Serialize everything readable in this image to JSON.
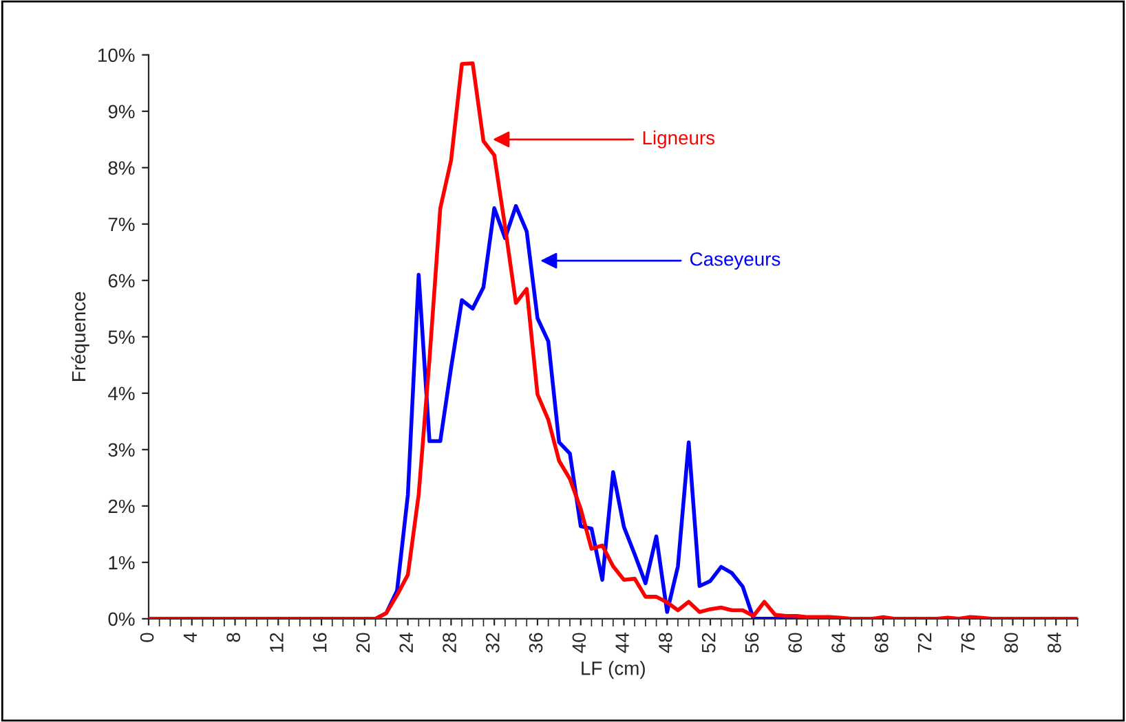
{
  "chart_data": {
    "type": "line",
    "xlabel": "LF (cm)",
    "ylabel": "Fréquence",
    "x": [
      0,
      1,
      2,
      3,
      4,
      5,
      6,
      7,
      8,
      9,
      10,
      11,
      12,
      13,
      14,
      15,
      16,
      17,
      18,
      19,
      20,
      21,
      22,
      23,
      24,
      25,
      26,
      27,
      28,
      29,
      30,
      31,
      32,
      33,
      34,
      35,
      36,
      37,
      38,
      39,
      40,
      41,
      42,
      43,
      44,
      45,
      46,
      47,
      48,
      49,
      50,
      51,
      52,
      53,
      54,
      55,
      56,
      57,
      58,
      59,
      60,
      61,
      62,
      63,
      64,
      65,
      66,
      67,
      68,
      69,
      70,
      71,
      72,
      73,
      74,
      75,
      76,
      77,
      78,
      79,
      80,
      81,
      82,
      83,
      84,
      85,
      86
    ],
    "series": [
      {
        "color": "#ff0000",
        "values": [
          0,
          0,
          0,
          0,
          0,
          0,
          0,
          0,
          0,
          0,
          0,
          0,
          0,
          0,
          0,
          0,
          0,
          0,
          0,
          0,
          0,
          0,
          0.1,
          0.42,
          0.78,
          2.2,
          4.6,
          7.28,
          8.13,
          9.84,
          9.85,
          8.47,
          8.22,
          6.95,
          5.6,
          5.85,
          3.98,
          3.53,
          2.8,
          2.48,
          1.95,
          1.24,
          1.3,
          0.93,
          0.69,
          0.71,
          0.39,
          0.39,
          0.29,
          0.15,
          0.3,
          0.12,
          0.17,
          0.2,
          0.15,
          0.15,
          0.05,
          0.3,
          0.07,
          0.05,
          0.05,
          0.03,
          0.03,
          0.03,
          0.02,
          0,
          0,
          0,
          0.03,
          0,
          0,
          0,
          0,
          0,
          0.02,
          0,
          0.03,
          0.02,
          0,
          0,
          0,
          0,
          0,
          0,
          0,
          0,
          0
        ]
      },
      {
        "color": "#0000ff",
        "values": [
          null,
          null,
          null,
          null,
          null,
          null,
          null,
          null,
          null,
          null,
          null,
          null,
          null,
          null,
          null,
          null,
          null,
          null,
          null,
          null,
          null,
          0,
          0.1,
          0.5,
          2.2,
          6.1,
          3.15,
          3.15,
          4.45,
          5.65,
          5.5,
          5.88,
          7.28,
          6.75,
          7.32,
          6.87,
          5.33,
          4.92,
          3.13,
          2.93,
          1.64,
          1.6,
          0.69,
          2.6,
          1.63,
          1.14,
          0.63,
          1.46,
          0.12,
          0.93,
          3.13,
          0.58,
          0.67,
          0.92,
          0.81,
          0.57,
          0,
          0,
          0,
          0,
          0,
          null,
          null,
          null,
          null,
          null,
          null,
          null,
          null,
          null,
          null,
          null,
          null,
          null,
          null,
          null,
          null,
          null,
          null,
          null,
          null,
          null,
          null,
          null,
          null,
          null,
          null
        ]
      }
    ],
    "xlim": [
      0,
      86
    ],
    "xticks": [
      0,
      4,
      8,
      12,
      16,
      20,
      24,
      28,
      32,
      36,
      40,
      44,
      48,
      52,
      56,
      60,
      64,
      68,
      72,
      76,
      80,
      84
    ],
    "ylim": [
      0,
      10
    ],
    "yticks": [
      {
        "value": 0,
        "label": "0%"
      },
      {
        "value": 1,
        "label": "1%"
      },
      {
        "value": 2,
        "label": "2%"
      },
      {
        "value": 3,
        "label": "3%"
      },
      {
        "value": 4,
        "label": "4%"
      },
      {
        "value": 5,
        "label": "5%"
      },
      {
        "value": 6,
        "label": "6%"
      },
      {
        "value": 7,
        "label": "7%"
      },
      {
        "value": 8,
        "label": "8%"
      },
      {
        "value": 9,
        "label": "9%"
      },
      {
        "value": 10,
        "label": "10%"
      }
    ],
    "annotations": [
      {
        "text": "Ligneurs",
        "x": 31.5,
        "y": 8.5
      },
      {
        "text": "Caseyeurs",
        "x": 35.9,
        "y": 6.35
      }
    ],
    "grid": false,
    "legend": false,
    "marker": "none",
    "line_style": "solid"
  }
}
